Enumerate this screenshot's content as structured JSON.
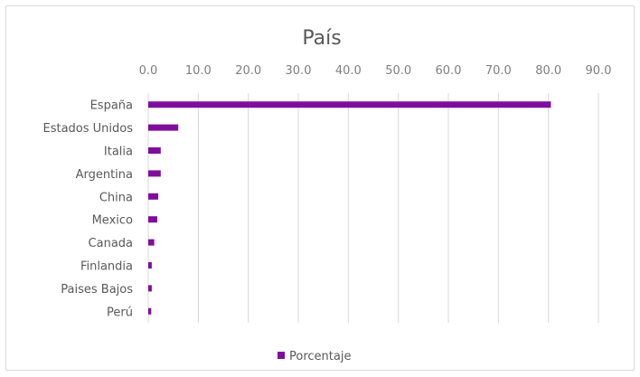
{
  "chart_data": {
    "type": "bar",
    "orientation": "horizontal",
    "title": "País",
    "categories": [
      "España",
      "Estados Unidos",
      "Italia",
      "Argentina",
      "China",
      "Mexico",
      "Canada",
      "Finlandia",
      "Paises Bajos",
      "Perú"
    ],
    "series": [
      {
        "name": "Porcentaje",
        "values": [
          80.5,
          6.0,
          2.5,
          2.5,
          2.0,
          1.8,
          1.2,
          0.7,
          0.7,
          0.6
        ]
      }
    ],
    "xlim": [
      0,
      90
    ],
    "xticks": [
      "0.0",
      "10.0",
      "20.0",
      "30.0",
      "40.0",
      "50.0",
      "60.0",
      "70.0",
      "80.0",
      "90.0"
    ],
    "grid": true,
    "legend_position": "bottom",
    "colors": {
      "bar": "#7f0e9e",
      "grid": "#d9d9d9",
      "text": "#595959"
    }
  }
}
